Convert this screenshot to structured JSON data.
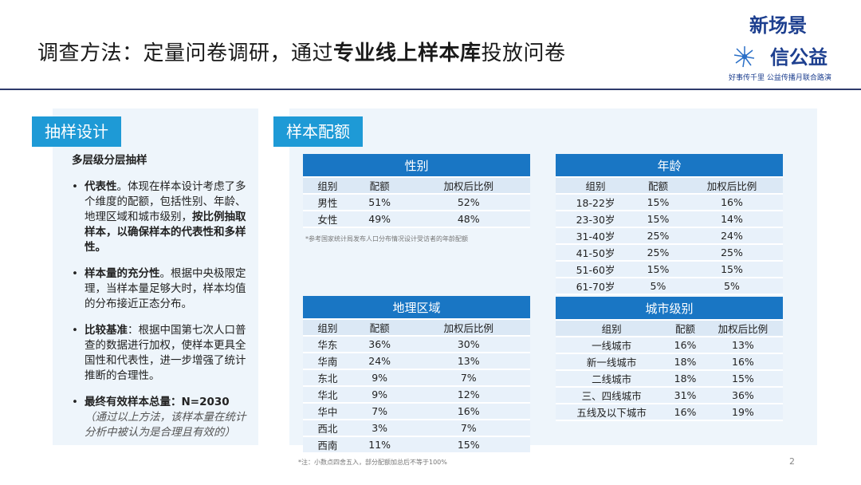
{
  "title": {
    "part1": "调查方法：定量问卷调研，通过",
    "bold": "专业线上样本库",
    "part2": "投放问卷"
  },
  "logo": {
    "line1": "新场景",
    "line2": "信公益",
    "line3": "好事传千里 公益传播月联合路演"
  },
  "left": {
    "tag": "抽样设计",
    "subtitle": "多层级分层抽样",
    "bullets": [
      {
        "bold1": "代表性",
        "text1": "。体现在样本设计考虑了多个维度的配额，包括性别、年龄、地理区域和城市级别，",
        "bold2": "按比例抽取样本，以确保样本的代表性和多样性。"
      },
      {
        "bold1": "样本量的充分性",
        "text1": "。根据中央极限定理，当样本量足够大时，样本均值的分布接近正态分布。"
      },
      {
        "bold1": "比较基准",
        "text1": "：根据中国第七次人口普查的数据进行加权，使样本更具全国性和代表性，进一步增强了统计推断的合理性。"
      },
      {
        "bold1": "最终有效样本总量：N=2030",
        "note": "（通过以上方法，该样本量在统计分析中被认为是合理且有效的）"
      }
    ]
  },
  "right": {
    "tag": "样本配额",
    "headers": [
      "组别",
      "配额",
      "加权后比例"
    ],
    "gender": {
      "title": "性别",
      "rows": [
        [
          "男性",
          "51%",
          "52%"
        ],
        [
          "女性",
          "49%",
          "48%"
        ]
      ],
      "note": "*参考国家统计局发布人口分布情况设计受访者的年龄配额"
    },
    "age": {
      "title": "年龄",
      "rows": [
        [
          "18-22岁",
          "15%",
          "16%"
        ],
        [
          "23-30岁",
          "15%",
          "14%"
        ],
        [
          "31-40岁",
          "25%",
          "24%"
        ],
        [
          "41-50岁",
          "25%",
          "25%"
        ],
        [
          "51-60岁",
          "15%",
          "15%"
        ],
        [
          "61-70岁",
          "5%",
          "5%"
        ]
      ]
    },
    "region": {
      "title": "地理区域",
      "rows": [
        [
          "华东",
          "36%",
          "30%"
        ],
        [
          "华南",
          "24%",
          "13%"
        ],
        [
          "东北",
          "9%",
          "7%"
        ],
        [
          "华北",
          "9%",
          "12%"
        ],
        [
          "华中",
          "7%",
          "16%"
        ],
        [
          "西北",
          "3%",
          "7%"
        ],
        [
          "西南",
          "11%",
          "15%"
        ]
      ]
    },
    "city": {
      "title": "城市级别",
      "rows": [
        [
          "一线城市",
          "16%",
          "13%"
        ],
        [
          "新一线城市",
          "18%",
          "16%"
        ],
        [
          "二线城市",
          "18%",
          "15%"
        ],
        [
          "三、四线城市",
          "31%",
          "36%"
        ],
        [
          "五线及以下城市",
          "16%",
          "19%"
        ]
      ]
    }
  },
  "footnote": "*注：小数点四舍五入，部分配额加总后不等于100%",
  "page_number": "2"
}
